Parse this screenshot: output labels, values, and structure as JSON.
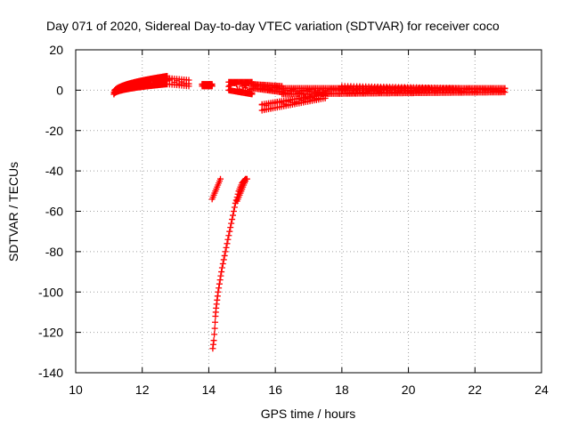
{
  "chart_data": {
    "type": "scatter",
    "title": "Day 071 of 2020, Sidereal Day-to-day VTEC variation (SDTVAR) for receiver coco",
    "xlabel": "GPS time / hours",
    "ylabel": "SDTVAR / TECUs",
    "xlim": [
      10,
      24
    ],
    "ylim": [
      -140,
      20
    ],
    "xticks": [
      10,
      12,
      14,
      16,
      18,
      20,
      22,
      24
    ],
    "yticks": [
      -140,
      -120,
      -100,
      -80,
      -60,
      -40,
      -20,
      0,
      20
    ],
    "grid": true,
    "marker": "plus",
    "color": "#ff0000",
    "segments": [
      {
        "x0": 11.15,
        "x1": 12.75,
        "ymin_start": -2,
        "ymax_start": -1,
        "ymin_end": 3,
        "ymax_end": 7,
        "count": 70,
        "shape": "rise"
      },
      {
        "x0": 12.75,
        "x1": 13.4,
        "ymin_start": 3,
        "ymax_start": 6,
        "ymin_end": 2,
        "ymax_end": 5,
        "count": 10,
        "shape": "linear"
      },
      {
        "x0": 13.8,
        "x1": 14.1,
        "ymin_start": 2,
        "ymax_start": 3,
        "ymin_end": 2,
        "ymax_end": 3,
        "count": 12,
        "shape": "linear"
      },
      {
        "x0": 14.6,
        "x1": 15.3,
        "ymin_start": 0,
        "ymax_start": 4,
        "ymin_end": -2,
        "ymax_end": 4,
        "count": 25,
        "shape": "linear"
      },
      {
        "x0": 15.3,
        "x1": 16.2,
        "ymin_start": 1,
        "ymax_start": 3,
        "ymin_end": -1,
        "ymax_end": 2,
        "count": 22,
        "shape": "linear"
      },
      {
        "x0": 15.6,
        "x1": 17.5,
        "ymin_start": -10,
        "ymax_start": -7,
        "ymin_end": -4,
        "ymax_end": -2,
        "count": 30,
        "shape": "linear"
      },
      {
        "x0": 16.2,
        "x1": 22.9,
        "ymin_start": -2,
        "ymax_start": 1,
        "ymin_end": -1,
        "ymax_end": 1,
        "count": 140,
        "shape": "linear"
      },
      {
        "x0": 18.0,
        "x1": 21.5,
        "ymin_start": 0,
        "ymax_start": 2,
        "ymin_end": 0,
        "ymax_end": 1,
        "count": 40,
        "shape": "linear"
      }
    ],
    "dips": [
      {
        "x": [
          14.1,
          14.15,
          14.2,
          14.25,
          14.3,
          14.35
        ],
        "y": [
          -54,
          -52,
          -50,
          -48,
          -46,
          -44
        ]
      },
      {
        "x": [
          14.12,
          14.15,
          14.18,
          14.2,
          14.22,
          14.25,
          14.28,
          14.32,
          14.36,
          14.4,
          14.45,
          14.5,
          14.55,
          14.6,
          14.65,
          14.7,
          14.75,
          14.8,
          14.85,
          14.9,
          14.95,
          15.0,
          15.05,
          15.1,
          15.15
        ],
        "y": [
          -128,
          -124,
          -118,
          -112,
          -108,
          -104,
          -100,
          -96,
          -92,
          -88,
          -84,
          -80,
          -76,
          -72,
          -68,
          -64,
          -60,
          -56,
          -53,
          -50,
          -48,
          -46,
          -45,
          -44,
          -44
        ]
      },
      {
        "x": [
          14.85,
          14.9,
          14.95,
          15.0,
          15.05,
          15.1
        ],
        "y": [
          -55,
          -53,
          -51,
          -49,
          -47,
          -45
        ]
      }
    ]
  }
}
